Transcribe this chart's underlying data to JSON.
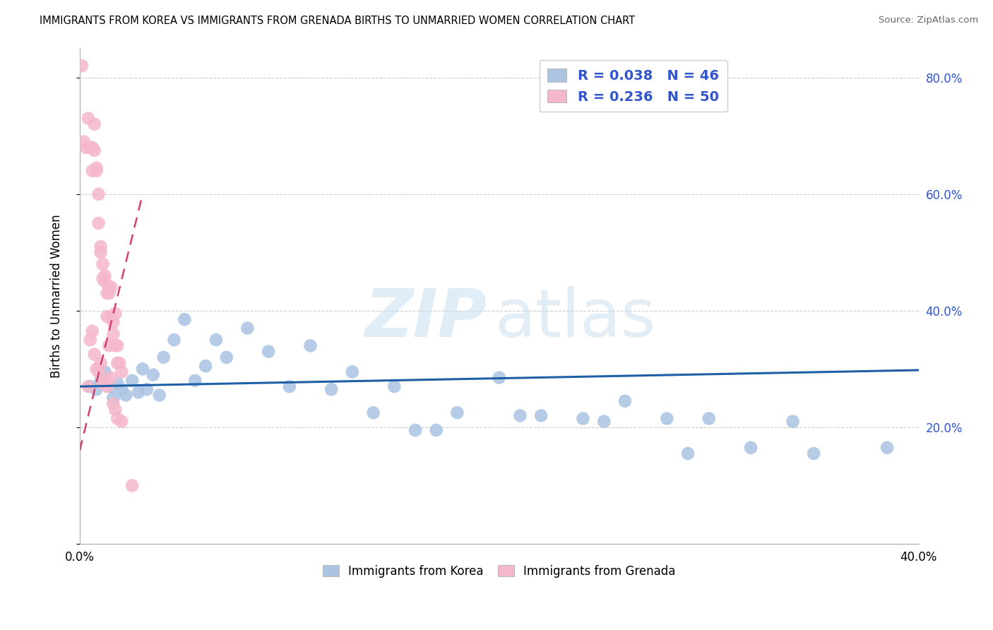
{
  "title": "IMMIGRANTS FROM KOREA VS IMMIGRANTS FROM GRENADA BIRTHS TO UNMARRIED WOMEN CORRELATION CHART",
  "source": "Source: ZipAtlas.com",
  "ylabel_label": "Births to Unmarried Women",
  "xlim": [
    0.0,
    0.4
  ],
  "ylim": [
    0.0,
    0.85
  ],
  "korea_R": 0.038,
  "korea_N": 46,
  "grenada_R": 0.236,
  "grenada_N": 50,
  "korea_color": "#aac4e2",
  "korea_line_color": "#1f5fa6",
  "grenada_color": "#f5b8cb",
  "grenada_line_color": "#d44070",
  "watermark_zip": "ZIP",
  "watermark_atlas": "atlas",
  "legend_text_color": "#3355cc",
  "korea_x": [
    0.005,
    0.008,
    0.01,
    0.012,
    0.015,
    0.016,
    0.018,
    0.02,
    0.022,
    0.025,
    0.028,
    0.03,
    0.032,
    0.035,
    0.038,
    0.04,
    0.045,
    0.05,
    0.055,
    0.06,
    0.065,
    0.07,
    0.08,
    0.09,
    0.1,
    0.11,
    0.12,
    0.13,
    0.14,
    0.15,
    0.16,
    0.17,
    0.18,
    0.2,
    0.21,
    0.22,
    0.24,
    0.25,
    0.26,
    0.28,
    0.29,
    0.3,
    0.32,
    0.34,
    0.35,
    0.385
  ],
  "korea_y": [
    0.27,
    0.265,
    0.28,
    0.295,
    0.27,
    0.25,
    0.275,
    0.265,
    0.255,
    0.28,
    0.26,
    0.3,
    0.265,
    0.29,
    0.255,
    0.32,
    0.35,
    0.385,
    0.28,
    0.305,
    0.35,
    0.32,
    0.37,
    0.33,
    0.27,
    0.34,
    0.265,
    0.295,
    0.225,
    0.27,
    0.195,
    0.195,
    0.225,
    0.285,
    0.22,
    0.22,
    0.215,
    0.21,
    0.245,
    0.215,
    0.155,
    0.215,
    0.165,
    0.21,
    0.155,
    0.165
  ],
  "grenada_x": [
    0.001,
    0.002,
    0.003,
    0.004,
    0.005,
    0.006,
    0.006,
    0.007,
    0.007,
    0.008,
    0.008,
    0.009,
    0.009,
    0.01,
    0.01,
    0.011,
    0.011,
    0.012,
    0.012,
    0.013,
    0.013,
    0.014,
    0.014,
    0.015,
    0.015,
    0.016,
    0.016,
    0.017,
    0.017,
    0.018,
    0.018,
    0.019,
    0.02,
    0.004,
    0.005,
    0.006,
    0.007,
    0.008,
    0.009,
    0.01,
    0.011,
    0.012,
    0.013,
    0.014,
    0.015,
    0.016,
    0.017,
    0.018,
    0.02,
    0.025
  ],
  "grenada_y": [
    0.82,
    0.69,
    0.68,
    0.73,
    0.68,
    0.68,
    0.64,
    0.675,
    0.72,
    0.64,
    0.645,
    0.55,
    0.6,
    0.5,
    0.51,
    0.48,
    0.455,
    0.45,
    0.46,
    0.43,
    0.39,
    0.43,
    0.44,
    0.39,
    0.44,
    0.36,
    0.38,
    0.34,
    0.395,
    0.31,
    0.34,
    0.31,
    0.295,
    0.27,
    0.35,
    0.365,
    0.325,
    0.3,
    0.295,
    0.31,
    0.275,
    0.28,
    0.27,
    0.34,
    0.285,
    0.24,
    0.23,
    0.215,
    0.21,
    0.1
  ],
  "korea_trend_x": [
    0.0,
    0.4
  ],
  "korea_trend_y": [
    0.27,
    0.298
  ],
  "grenada_trend_x": [
    0.0,
    0.03
  ],
  "grenada_trend_y": [
    0.16,
    0.6
  ]
}
